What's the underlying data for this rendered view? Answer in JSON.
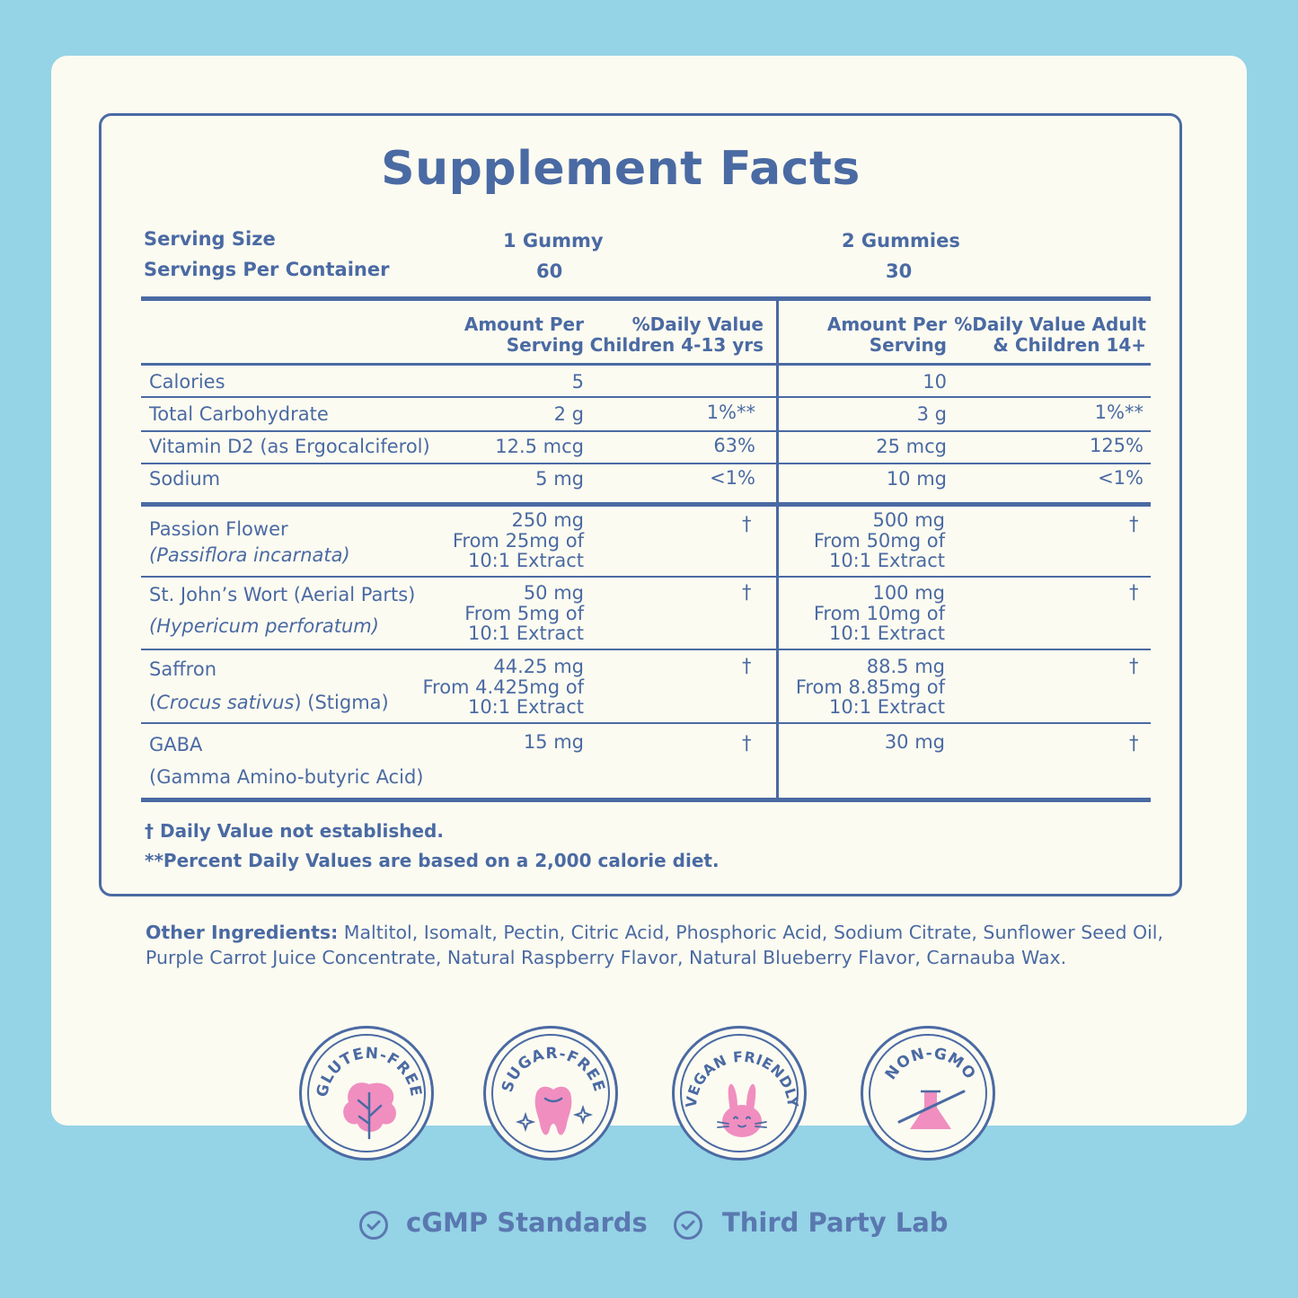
{
  "title": "Supplement Facts",
  "serving": {
    "size_label": "Serving Size",
    "per_container_label": "Servings Per Container",
    "col1_size": "1 Gummy",
    "col1_servings": "60",
    "col2_size": "2 Gummies",
    "col2_servings": "30"
  },
  "headers": {
    "amt1_l1": "Amount Per",
    "amt1_l2": "Serving",
    "dv1_l1": "%Daily Value",
    "dv1_l2": "Children 4-13 yrs",
    "amt2_l1": "Amount Per",
    "amt2_l2": "Serving",
    "dv2_l1": "%Daily Value Adult",
    "dv2_l2": "& Children 14+"
  },
  "rows": [
    {
      "name": "Calories",
      "amt1": "5",
      "dv1": "",
      "amt2": "10",
      "dv2": ""
    },
    {
      "name": "Total Carbohydrate",
      "amt1": "2 g",
      "dv1": "1%**",
      "amt2": "3 g",
      "dv2": "1%**"
    },
    {
      "name": "Vitamin D2 (as Ergocalciferol)",
      "amt1": "12.5 mcg",
      "dv1": "63%",
      "amt2": "25 mcg",
      "dv2": "125%"
    },
    {
      "name": "Sodium",
      "amt1": "5 mg",
      "dv1": "<1%",
      "amt2": "10 mg",
      "dv2": "<1%"
    }
  ],
  "herbs": [
    {
      "name": "Passion Flower",
      "latin": "(Passiflora incarnata)",
      "latin_suffix": "",
      "amt1": [
        "250 mg",
        "From 25mg of",
        "10:1 Extract"
      ],
      "dv1": "†",
      "amt2": [
        "500 mg",
        "From 50mg of",
        "10:1 Extract"
      ],
      "dv2": "†"
    },
    {
      "name": "St. John’s Wort (Aerial Parts)",
      "latin": "(Hypericum perforatum)",
      "latin_suffix": "",
      "amt1": [
        "50 mg",
        "From 5mg of",
        "10:1 Extract"
      ],
      "dv1": "†",
      "amt2": [
        "100 mg",
        "From 10mg of",
        "10:1 Extract"
      ],
      "dv2": "†"
    },
    {
      "name": "Saffron",
      "latin": "Crocus sativus",
      "latin_suffix": " (Stigma)",
      "amt1": [
        "44.25 mg",
        "From 4.425mg of",
        "10:1 Extract"
      ],
      "dv1": "†",
      "amt2": [
        "88.5 mg",
        "From 8.85mg of",
        "10:1 Extract"
      ],
      "dv2": "†"
    },
    {
      "name": "GABA",
      "latin": "(Gamma Amino-butyric Acid)",
      "latin_suffix": "",
      "amt1": [
        "15 mg"
      ],
      "dv1": "†",
      "amt2": [
        "30 mg"
      ],
      "dv2": "†"
    }
  ],
  "footnotes": {
    "dagger": "† Daily Value not established.",
    "percent": "**Percent Daily Values are based on a 2,000 calorie diet."
  },
  "other_ingredients": {
    "label": "Other Ingredients:",
    "text": " Maltitol, Isomalt, Pectin, Citric Acid, Phosphoric Acid, Sodium Citrate, Sunflower Seed Oil, Purple Carrot Juice Concentrate, Natural Raspberry Flavor, Natural Blueberry Flavor, Carnauba Wax."
  },
  "badges": [
    {
      "label": "GLUTEN-FREE",
      "icon": "leaf-icon"
    },
    {
      "label": "SUGAR-FREE",
      "icon": "tooth-icon"
    },
    {
      "label": "VEGAN FRIENDLY",
      "icon": "bunny-icon"
    },
    {
      "label": "NON-GMO",
      "icon": "flask-icon"
    }
  ],
  "standards": [
    "cGMP Standards",
    "Third Party Lab"
  ],
  "colors": {
    "primary": "#4a6aa3",
    "background": "#95d3e6",
    "card": "#fcfbf1",
    "pink": "#f08ec0"
  }
}
